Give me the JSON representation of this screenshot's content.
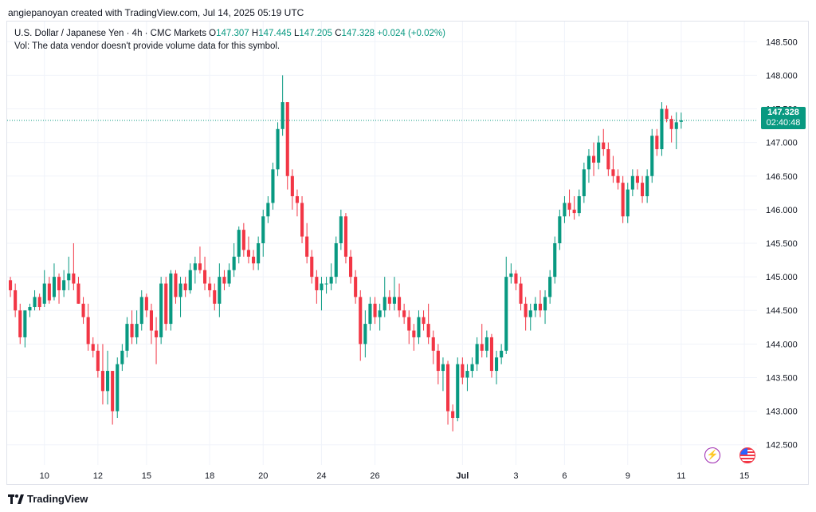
{
  "header": {
    "caption": "angiepanoyan created with TradingView.com, Jul 14, 2025 05:19 UTC"
  },
  "legend": {
    "symbol": "U.S. Dollar / Japanese Yen · 4h · CMC Markets",
    "o_label": "O",
    "o_value": "147.307",
    "h_label": "H",
    "h_value": "147.445",
    "l_label": "L",
    "l_value": "147.205",
    "c_label": "C",
    "c_value": "147.328",
    "change": "+0.024 (+0.02%)",
    "vol_note": "Vol: The data vendor doesn't provide volume data for this symbol."
  },
  "price_tag": {
    "price": "147.328",
    "countdown": "02:40:48"
  },
  "footer": {
    "brand": "TradingView"
  },
  "colors": {
    "up": "#089981",
    "down": "#f23645",
    "grid": "#f0f3fa",
    "axis_text": "#131722"
  },
  "icons": [
    "flash-icon",
    "us-flag-icon",
    "tradingview-logo-icon"
  ],
  "chart_data": {
    "type": "candlestick",
    "title": "U.S. Dollar / Japanese Yen · 4h · CMC Markets",
    "ylim": [
      142.2,
      148.8
    ],
    "y_ticks": [
      "142.500",
      "143.000",
      "143.500",
      "144.000",
      "144.500",
      "145.000",
      "145.500",
      "146.000",
      "146.500",
      "147.000",
      "147.500",
      "148.000",
      "148.500"
    ],
    "x_ticks": [
      {
        "label": "10",
        "bar": 7.5
      },
      {
        "label": "12",
        "bar": 18.5
      },
      {
        "label": "15",
        "bar": 28.5
      },
      {
        "label": "18",
        "bar": 41.5
      },
      {
        "label": "20",
        "bar": 52.5
      },
      {
        "label": "24",
        "bar": 64.5
      },
      {
        "label": "26",
        "bar": 75.5
      },
      {
        "label": "Jul",
        "bar": 93.5
      },
      {
        "label": "3",
        "bar": 104.5
      },
      {
        "label": "6",
        "bar": 114.5
      },
      {
        "label": "9",
        "bar": 127.5
      },
      {
        "label": "11",
        "bar": 138.5
      },
      {
        "label": "15",
        "bar": 151.5
      }
    ],
    "last_price": 147.328,
    "grid": true,
    "candles": [
      [
        144.95,
        145.0,
        144.7,
        144.8
      ],
      [
        144.8,
        144.9,
        144.4,
        144.5
      ],
      [
        144.5,
        144.6,
        144.0,
        144.1
      ],
      [
        144.1,
        144.5,
        143.95,
        144.5
      ],
      [
        144.5,
        144.6,
        144.4,
        144.55
      ],
      [
        144.55,
        144.8,
        144.5,
        144.7
      ],
      [
        144.7,
        144.75,
        144.5,
        144.55
      ],
      [
        144.6,
        145.1,
        144.55,
        144.9
      ],
      [
        144.9,
        145.0,
        144.6,
        144.65
      ],
      [
        144.7,
        145.2,
        144.65,
        145.0
      ],
      [
        145.0,
        145.05,
        144.6,
        144.8
      ],
      [
        144.8,
        145.1,
        144.7,
        144.95
      ],
      [
        144.95,
        145.3,
        144.8,
        145.05
      ],
      [
        145.05,
        145.5,
        144.8,
        144.9
      ],
      [
        144.9,
        145.0,
        144.6,
        144.6
      ],
      [
        144.6,
        144.7,
        144.3,
        144.4
      ],
      [
        144.4,
        144.6,
        143.9,
        144.0
      ],
      [
        144.0,
        144.1,
        143.8,
        143.9
      ],
      [
        143.9,
        144.0,
        143.5,
        143.6
      ],
      [
        143.6,
        144.0,
        143.1,
        143.3
      ],
      [
        143.3,
        143.9,
        143.1,
        143.6
      ],
      [
        143.6,
        143.6,
        142.8,
        143.0
      ],
      [
        143.0,
        143.8,
        142.9,
        143.7
      ],
      [
        143.7,
        144.0,
        143.6,
        143.9
      ],
      [
        143.9,
        144.4,
        143.8,
        144.3
      ],
      [
        144.3,
        144.5,
        144.0,
        144.1
      ],
      [
        144.1,
        144.5,
        144.0,
        144.3
      ],
      [
        144.3,
        144.8,
        144.2,
        144.7
      ],
      [
        144.7,
        144.75,
        144.4,
        144.5
      ],
      [
        144.5,
        144.6,
        144.0,
        144.2
      ],
      [
        144.2,
        144.4,
        143.7,
        144.1
      ],
      [
        144.1,
        145.0,
        144.0,
        144.9
      ],
      [
        144.9,
        145.0,
        144.2,
        144.3
      ],
      [
        144.3,
        145.1,
        144.2,
        145.05
      ],
      [
        145.05,
        145.1,
        144.6,
        144.7
      ],
      [
        144.7,
        145.0,
        144.4,
        144.9
      ],
      [
        144.9,
        145.0,
        144.7,
        144.8
      ],
      [
        144.8,
        145.2,
        144.75,
        145.1
      ],
      [
        145.1,
        145.3,
        144.9,
        145.2
      ],
      [
        145.2,
        145.45,
        145.05,
        145.1
      ],
      [
        145.1,
        145.3,
        144.8,
        144.9
      ],
      [
        144.9,
        145.0,
        144.7,
        144.8
      ],
      [
        144.8,
        144.9,
        144.5,
        144.6
      ],
      [
        144.6,
        145.2,
        144.4,
        145.0
      ],
      [
        145.0,
        145.1,
        144.8,
        144.9
      ],
      [
        144.9,
        145.2,
        144.85,
        145.1
      ],
      [
        145.1,
        145.5,
        145.0,
        145.3
      ],
      [
        145.3,
        145.75,
        145.2,
        145.7
      ],
      [
        145.7,
        145.8,
        145.3,
        145.4
      ],
      [
        145.4,
        145.6,
        145.2,
        145.3
      ],
      [
        145.3,
        145.4,
        145.1,
        145.2
      ],
      [
        145.2,
        145.6,
        145.1,
        145.5
      ],
      [
        145.5,
        146.0,
        145.3,
        145.9
      ],
      [
        145.9,
        146.2,
        145.8,
        146.1
      ],
      [
        146.1,
        146.7,
        146.0,
        146.6
      ],
      [
        146.6,
        147.3,
        146.5,
        147.2
      ],
      [
        147.2,
        148.0,
        147.1,
        147.6
      ],
      [
        147.6,
        147.6,
        146.3,
        146.5
      ],
      [
        146.5,
        146.6,
        146.0,
        146.2
      ],
      [
        146.2,
        146.3,
        145.9,
        146.1
      ],
      [
        146.1,
        146.2,
        145.5,
        145.6
      ],
      [
        145.6,
        145.8,
        145.2,
        145.3
      ],
      [
        145.3,
        145.4,
        144.9,
        145.0
      ],
      [
        145.0,
        145.1,
        144.6,
        144.8
      ],
      [
        144.8,
        145.0,
        144.5,
        144.9
      ],
      [
        144.9,
        145.0,
        144.75,
        144.9
      ],
      [
        144.9,
        145.2,
        144.8,
        145.0
      ],
      [
        145.0,
        145.6,
        144.9,
        145.5
      ],
      [
        145.5,
        146.0,
        145.4,
        145.9
      ],
      [
        145.9,
        145.95,
        145.2,
        145.3
      ],
      [
        145.3,
        145.4,
        144.9,
        145.0
      ],
      [
        145.0,
        145.1,
        144.6,
        144.7
      ],
      [
        144.7,
        144.8,
        143.75,
        144.0
      ],
      [
        144.0,
        144.5,
        143.8,
        144.3
      ],
      [
        144.3,
        144.7,
        144.2,
        144.6
      ],
      [
        144.6,
        144.7,
        144.3,
        144.4
      ],
      [
        144.4,
        144.6,
        144.2,
        144.5
      ],
      [
        144.5,
        145.0,
        144.4,
        144.7
      ],
      [
        144.7,
        144.8,
        144.5,
        144.6
      ],
      [
        144.6,
        145.0,
        144.5,
        144.7
      ],
      [
        144.7,
        144.9,
        144.4,
        144.5
      ],
      [
        144.5,
        144.6,
        144.3,
        144.4
      ],
      [
        144.4,
        144.5,
        144.0,
        144.2
      ],
      [
        144.2,
        144.3,
        143.9,
        144.1
      ],
      [
        144.1,
        144.5,
        144.0,
        144.4
      ],
      [
        144.4,
        144.5,
        144.2,
        144.3
      ],
      [
        144.3,
        144.6,
        144.0,
        144.1
      ],
      [
        144.1,
        144.2,
        143.7,
        143.9
      ],
      [
        143.9,
        144.0,
        143.4,
        143.6
      ],
      [
        143.6,
        143.8,
        143.3,
        143.7
      ],
      [
        143.7,
        143.75,
        142.8,
        143.0
      ],
      [
        143.0,
        143.1,
        142.7,
        142.9
      ],
      [
        142.9,
        143.8,
        142.85,
        143.7
      ],
      [
        143.7,
        143.8,
        143.4,
        143.5
      ],
      [
        143.5,
        143.7,
        143.3,
        143.6
      ],
      [
        143.6,
        143.8,
        143.5,
        143.7
      ],
      [
        143.7,
        144.1,
        143.6,
        144.0
      ],
      [
        144.0,
        144.3,
        143.8,
        143.9
      ],
      [
        143.9,
        144.2,
        143.8,
        144.1
      ],
      [
        144.1,
        144.15,
        143.5,
        143.6
      ],
      [
        143.6,
        143.9,
        143.4,
        143.8
      ],
      [
        143.8,
        144.0,
        143.7,
        143.9
      ],
      [
        143.9,
        145.3,
        143.85,
        145.0
      ],
      [
        145.0,
        145.2,
        144.9,
        145.05
      ],
      [
        145.05,
        145.1,
        144.8,
        144.9
      ],
      [
        144.9,
        145.0,
        144.5,
        144.6
      ],
      [
        144.6,
        144.7,
        144.2,
        144.4
      ],
      [
        144.4,
        144.6,
        144.2,
        144.5
      ],
      [
        144.5,
        144.7,
        144.4,
        144.6
      ],
      [
        144.6,
        144.8,
        144.4,
        144.5
      ],
      [
        144.5,
        144.8,
        144.3,
        144.7
      ],
      [
        144.7,
        145.1,
        144.6,
        145.0
      ],
      [
        145.0,
        145.6,
        144.9,
        145.5
      ],
      [
        145.5,
        146.0,
        145.4,
        145.9
      ],
      [
        145.9,
        146.2,
        145.8,
        146.1
      ],
      [
        146.1,
        146.3,
        145.9,
        146.0
      ],
      [
        146.0,
        146.2,
        145.85,
        145.95
      ],
      [
        145.95,
        146.3,
        145.9,
        146.2
      ],
      [
        146.2,
        146.7,
        146.1,
        146.6
      ],
      [
        146.6,
        146.9,
        146.4,
        146.8
      ],
      [
        146.8,
        147.0,
        146.5,
        146.7
      ],
      [
        146.7,
        147.1,
        146.6,
        147.0
      ],
      [
        147.0,
        147.2,
        146.8,
        146.9
      ],
      [
        146.9,
        147.0,
        146.5,
        146.6
      ],
      [
        146.6,
        146.8,
        146.4,
        146.5
      ],
      [
        146.5,
        146.6,
        146.3,
        146.4
      ],
      [
        146.4,
        146.5,
        145.8,
        145.9
      ],
      [
        145.9,
        146.4,
        145.8,
        146.3
      ],
      [
        146.3,
        146.6,
        146.2,
        146.5
      ],
      [
        146.5,
        146.6,
        146.3,
        146.4
      ],
      [
        146.4,
        146.5,
        146.1,
        146.2
      ],
      [
        146.2,
        146.6,
        146.1,
        146.5
      ],
      [
        146.5,
        147.2,
        146.4,
        147.1
      ],
      [
        147.1,
        147.2,
        146.8,
        146.9
      ],
      [
        146.9,
        147.6,
        146.8,
        147.5
      ],
      [
        147.5,
        147.55,
        147.3,
        147.35
      ],
      [
        147.35,
        147.4,
        147.0,
        147.2
      ],
      [
        147.2,
        147.45,
        146.9,
        147.3
      ],
      [
        147.307,
        147.445,
        147.205,
        147.328
      ]
    ]
  }
}
